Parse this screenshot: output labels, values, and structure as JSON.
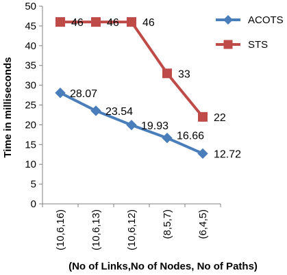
{
  "chart_data": {
    "type": "line",
    "title": "",
    "xlabel": "(No of Links,No of Nodes, No of Paths)",
    "ylabel": "Time in milliseconds",
    "categories": [
      "(10,6,16)",
      "(10,6,13)",
      "(10,6,12)",
      "(8,5,7)",
      "(6,4,5)"
    ],
    "ylim": [
      0,
      50
    ],
    "yticks": [
      0,
      5,
      10,
      15,
      20,
      25,
      30,
      35,
      40,
      45,
      50
    ],
    "grid": false,
    "legend_position": "right",
    "series": [
      {
        "name": "ACOTS",
        "values": [
          28.07,
          23.54,
          19.93,
          16.66,
          12.72
        ],
        "labels": [
          "28.07",
          "23.54",
          "19.93",
          "16.66",
          "12.72"
        ],
        "color": "#4a7ebb",
        "marker": "diamond"
      },
      {
        "name": "STS",
        "values": [
          46,
          46,
          46,
          33,
          22
        ],
        "labels": [
          "46",
          "46",
          "46",
          "33",
          "22"
        ],
        "color": "#be4b48",
        "marker": "square"
      }
    ]
  }
}
